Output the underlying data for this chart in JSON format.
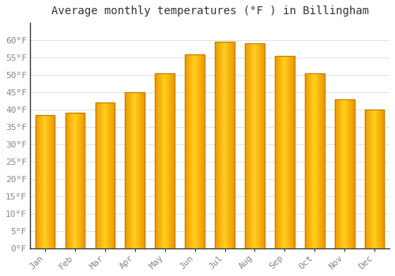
{
  "title": "Average monthly temperatures (°F ) in Billingham",
  "months": [
    "Jan",
    "Feb",
    "Mar",
    "Apr",
    "May",
    "Jun",
    "Jul",
    "Aug",
    "Sep",
    "Oct",
    "Nov",
    "Dec"
  ],
  "values": [
    38.5,
    39.0,
    42.0,
    45.0,
    50.5,
    56.0,
    59.5,
    59.0,
    55.5,
    50.5,
    43.0,
    40.0
  ],
  "bar_color_center": "#FFD040",
  "bar_color_edge": "#F0A000",
  "bar_edge_color": "#C08000",
  "ylim": [
    0,
    65
  ],
  "yticks": [
    0,
    5,
    10,
    15,
    20,
    25,
    30,
    35,
    40,
    45,
    50,
    55,
    60
  ],
  "background_color": "#FFFFFF",
  "plot_bg_color": "#FFFFFF",
  "grid_color": "#DDDDDD",
  "title_fontsize": 10,
  "tick_fontsize": 8,
  "tick_label_color": "#888888",
  "spine_color": "#333333"
}
